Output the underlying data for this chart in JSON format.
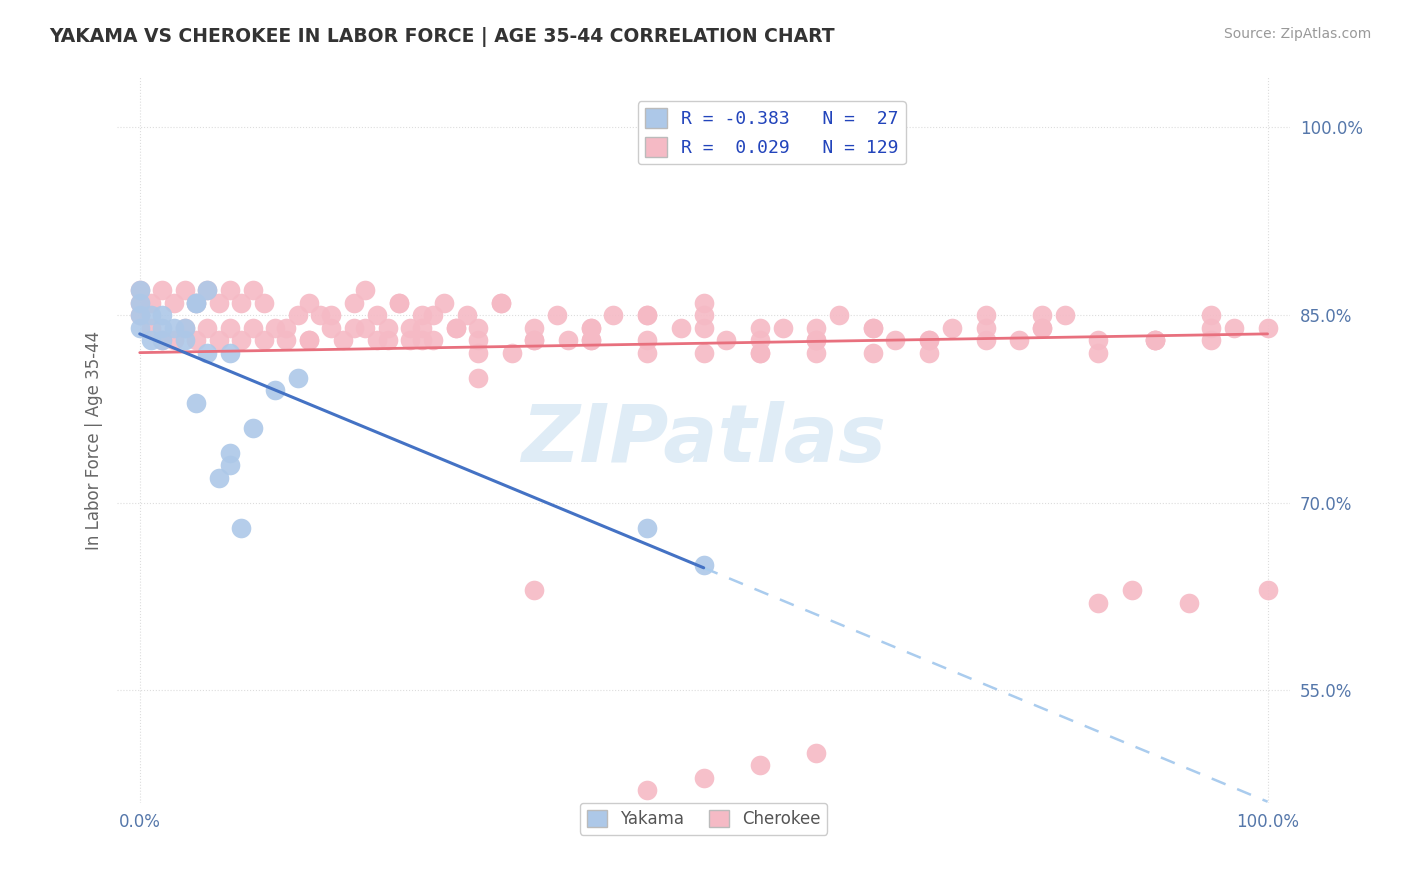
{
  "title": "YAKAMA VS CHEROKEE IN LABOR FORCE | AGE 35-44 CORRELATION CHART",
  "source_text": "Source: ZipAtlas.com",
  "ylabel": "In Labor Force | Age 35-44",
  "xlim": [
    -0.02,
    1.02
  ],
  "ylim": [
    0.46,
    1.04
  ],
  "yakama_R": -0.383,
  "yakama_N": 27,
  "cherokee_R": 0.029,
  "cherokee_N": 129,
  "yakama_color": "#adc8e8",
  "cherokee_color": "#f5bac5",
  "trend_yakama_color": "#4472c4",
  "trend_cherokee_color": "#e8707e",
  "dashed_color": "#aaccee",
  "watermark_color": "#c5ddf0",
  "background_color": "#ffffff",
  "grid_color": "#dddddd",
  "yticks": [
    0.55,
    0.7,
    0.85,
    1.0
  ],
  "ytick_labels": [
    "55.0%",
    "70.0%",
    "85.0%",
    "100.0%"
  ],
  "xticks": [
    0.0,
    1.0
  ],
  "xtick_labels": [
    "0.0%",
    "100.0%"
  ],
  "legend_R_label1": "R = -0.383   N =  27",
  "legend_R_label2": "R =  0.029   N = 129",
  "legend_label1": "Yakama",
  "legend_label2": "Cherokee",
  "watermark": "ZIPatlas",
  "yakama_x": [
    0.0,
    0.0,
    0.0,
    0.0,
    0.01,
    0.01,
    0.02,
    0.02,
    0.02,
    0.03,
    0.04,
    0.04,
    0.05,
    0.05,
    0.06,
    0.07,
    0.08,
    0.08,
    0.09,
    0.1,
    0.12,
    0.14,
    0.05,
    0.06,
    0.08,
    0.45,
    0.5
  ],
  "yakama_y": [
    0.84,
    0.85,
    0.86,
    0.87,
    0.83,
    0.85,
    0.83,
    0.84,
    0.85,
    0.84,
    0.83,
    0.84,
    0.86,
    0.78,
    0.82,
    0.72,
    0.82,
    0.74,
    0.68,
    0.76,
    0.79,
    0.8,
    0.86,
    0.87,
    0.73,
    0.68,
    0.65
  ],
  "cherokee_x": [
    0.0,
    0.0,
    0.0,
    0.01,
    0.01,
    0.02,
    0.02,
    0.03,
    0.03,
    0.04,
    0.04,
    0.05,
    0.05,
    0.06,
    0.06,
    0.07,
    0.07,
    0.08,
    0.08,
    0.09,
    0.09,
    0.1,
    0.1,
    0.11,
    0.11,
    0.12,
    0.13,
    0.14,
    0.15,
    0.15,
    0.16,
    0.17,
    0.18,
    0.19,
    0.2,
    0.2,
    0.21,
    0.22,
    0.23,
    0.24,
    0.25,
    0.26,
    0.27,
    0.28,
    0.29,
    0.3,
    0.32,
    0.33,
    0.35,
    0.37,
    0.38,
    0.4,
    0.22,
    0.24,
    0.26,
    0.28,
    0.3,
    0.32,
    0.13,
    0.15,
    0.17,
    0.19,
    0.21,
    0.23,
    0.25,
    0.42,
    0.45,
    0.48,
    0.5,
    0.52,
    0.55,
    0.57,
    0.6,
    0.62,
    0.65,
    0.67,
    0.7,
    0.72,
    0.75,
    0.78,
    0.8,
    0.82,
    0.85,
    0.88,
    0.9,
    0.93,
    0.95,
    0.97,
    1.0,
    0.45,
    0.5,
    0.55,
    0.6,
    0.65,
    0.7,
    0.75,
    0.8,
    0.85,
    0.9,
    0.95,
    0.35,
    0.4,
    0.45,
    0.5,
    0.55,
    0.6,
    0.25,
    0.3,
    0.35,
    0.4,
    0.45,
    0.5,
    0.55,
    0.6,
    0.65,
    0.7,
    0.75,
    0.8,
    0.85,
    0.9,
    0.95,
    1.0,
    0.3,
    0.35,
    0.4,
    0.45,
    0.5,
    0.55,
    0.6
  ],
  "cherokee_y": [
    0.85,
    0.86,
    0.87,
    0.84,
    0.86,
    0.83,
    0.87,
    0.83,
    0.86,
    0.84,
    0.87,
    0.83,
    0.86,
    0.84,
    0.87,
    0.83,
    0.86,
    0.84,
    0.87,
    0.83,
    0.86,
    0.84,
    0.87,
    0.83,
    0.86,
    0.84,
    0.83,
    0.85,
    0.83,
    0.86,
    0.85,
    0.84,
    0.83,
    0.86,
    0.84,
    0.87,
    0.85,
    0.83,
    0.86,
    0.84,
    0.85,
    0.83,
    0.86,
    0.84,
    0.85,
    0.8,
    0.86,
    0.82,
    0.83,
    0.85,
    0.83,
    0.84,
    0.84,
    0.83,
    0.85,
    0.84,
    0.83,
    0.86,
    0.84,
    0.83,
    0.85,
    0.84,
    0.83,
    0.86,
    0.84,
    0.85,
    0.83,
    0.84,
    0.86,
    0.83,
    0.82,
    0.84,
    0.82,
    0.85,
    0.84,
    0.83,
    0.83,
    0.84,
    0.85,
    0.83,
    0.84,
    0.85,
    0.83,
    0.63,
    0.83,
    0.62,
    0.85,
    0.84,
    0.63,
    0.85,
    0.84,
    0.82,
    0.83,
    0.84,
    0.82,
    0.83,
    0.84,
    0.62,
    0.83,
    0.84,
    0.63,
    0.83,
    0.85,
    0.82,
    0.84,
    0.83,
    0.83,
    0.84,
    0.83,
    0.84,
    0.82,
    0.85,
    0.83,
    0.84,
    0.82,
    0.83,
    0.84,
    0.85,
    0.82,
    0.83,
    0.83,
    0.84,
    0.82,
    0.84,
    0.83,
    0.47,
    0.48,
    0.49,
    0.5
  ]
}
